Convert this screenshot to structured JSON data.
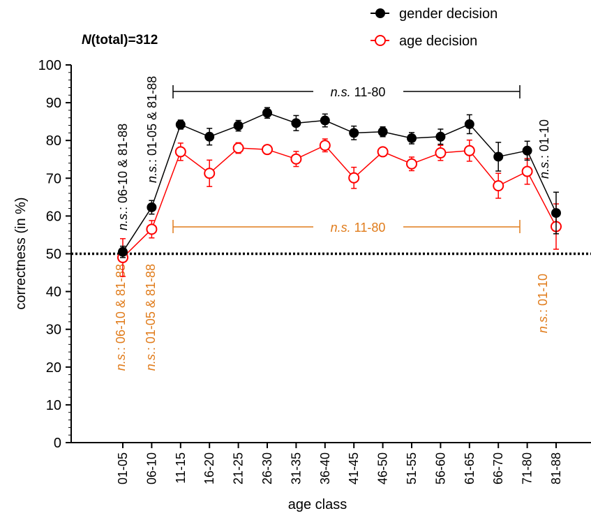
{
  "chart_data": {
    "type": "line",
    "subtitle_prefix": "N",
    "subtitle_suffix": "(total)=312",
    "xlabel": "age class",
    "ylabel": "correctness (in %)",
    "ylim": [
      0,
      100
    ],
    "yticks": [
      "0",
      "10",
      "20",
      "30",
      "40",
      "50",
      "60",
      "70",
      "80",
      "90",
      "100"
    ],
    "categories": [
      "01-05",
      "06-10",
      "11-15",
      "16-20",
      "21-25",
      "26-30",
      "31-35",
      "36-40",
      "41-45",
      "46-50",
      "51-55",
      "56-60",
      "61-65",
      "66-70",
      "71-80",
      "81-88"
    ],
    "reference_line": 50,
    "legend_position": "top-right",
    "series": [
      {
        "name": "gender decision",
        "color": "#000000",
        "marker": "filled-circle",
        "values": [
          50.5,
          62.3,
          84.2,
          81.0,
          83.9,
          87.3,
          84.6,
          85.3,
          82.0,
          82.3,
          80.6,
          81.0,
          84.3,
          75.7,
          77.3,
          60.8
        ],
        "errors": [
          1.5,
          1.8,
          1.2,
          2.2,
          1.4,
          1.4,
          2.0,
          1.7,
          1.8,
          1.3,
          1.5,
          2.0,
          2.5,
          3.8,
          2.5,
          5.5
        ]
      },
      {
        "name": "age decision",
        "color": "#ff0000",
        "marker": "open-circle",
        "values": [
          49.0,
          56.5,
          77.0,
          71.3,
          78.0,
          77.6,
          75.1,
          78.7,
          70.1,
          77.0,
          73.8,
          76.7,
          77.3,
          68.0,
          71.8,
          57.2
        ],
        "errors": [
          5.0,
          2.3,
          2.3,
          3.5,
          1.4,
          1.0,
          2.0,
          1.7,
          2.8,
          1.0,
          1.8,
          2.0,
          2.8,
          3.3,
          3.4,
          6.0
        ]
      }
    ],
    "annotations": {
      "ns_gender_range": {
        "prefix": "n.s.",
        "text": " 11-80"
      },
      "ns_age_range": {
        "prefix": "n.s.",
        "text": " 11-80"
      },
      "gender_0105": {
        "prefix": "n.s.",
        "text": ": 06-10 & 81-88"
      },
      "gender_0610": {
        "prefix": "n.s.",
        "text": ": 01-05 & 81-88"
      },
      "gender_8188": {
        "prefix": "n.s.",
        "text": ": 01-10"
      },
      "age_0105": {
        "prefix": "n.s.",
        "text": ": 06-10 & 81-88"
      },
      "age_0610": {
        "prefix": "n.s.",
        "text": ": 01-05 & 81-88"
      },
      "age_8188": {
        "prefix": "n.s.",
        "text": ": 01-10"
      }
    },
    "annotation_colors": {
      "gender": "#000000",
      "age": "#e07b1a"
    }
  }
}
